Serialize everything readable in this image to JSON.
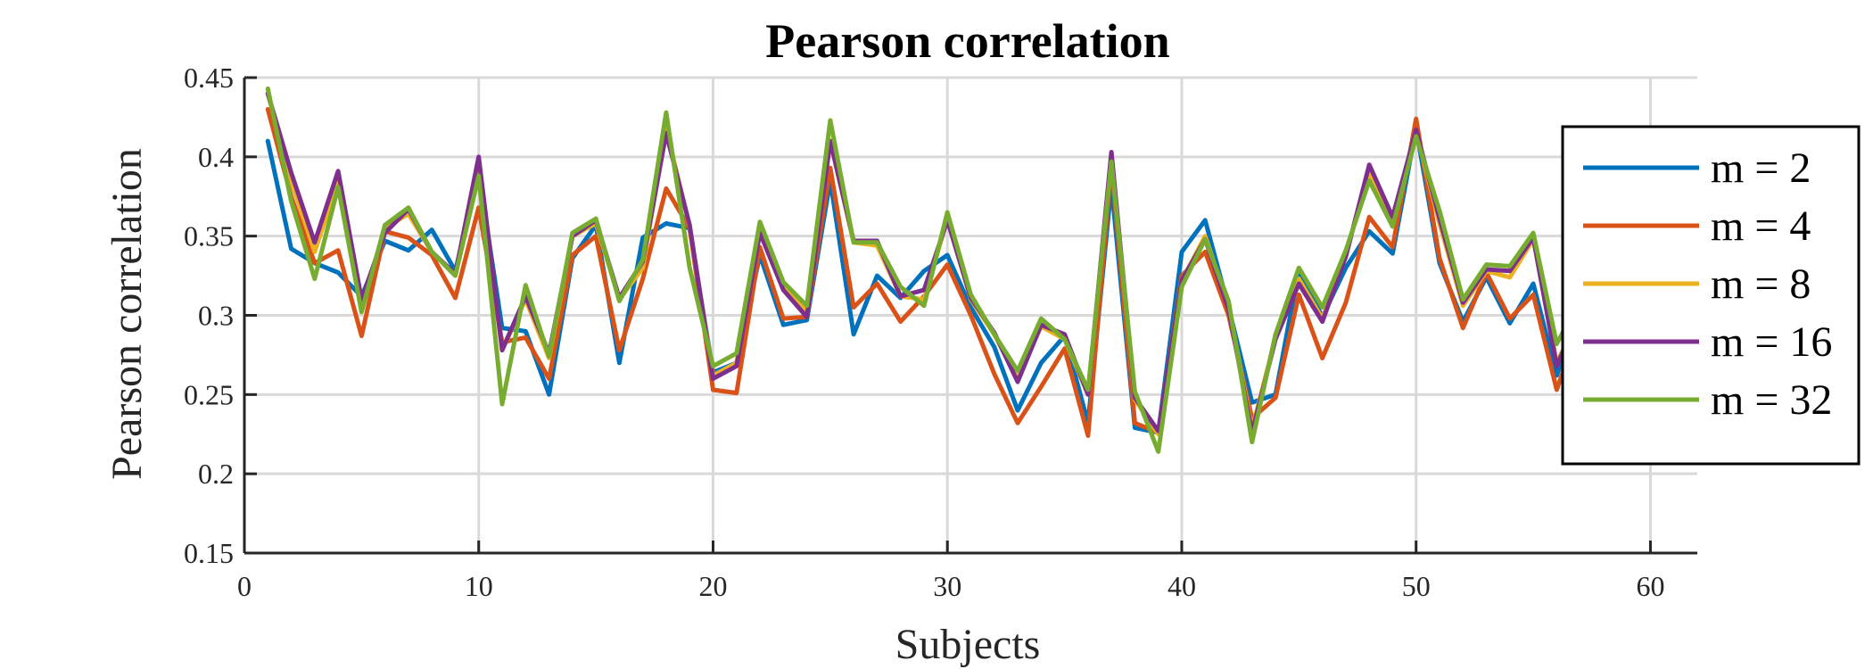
{
  "chart_data": {
    "type": "line",
    "title": "Pearson correlation",
    "xlabel": "Subjects",
    "ylabel": "Pearson correlation",
    "xlim": [
      0,
      62
    ],
    "ylim": [
      0.15,
      0.45
    ],
    "xticks": [
      0,
      10,
      20,
      30,
      40,
      50,
      60
    ],
    "yticks": [
      0.15,
      0.2,
      0.25,
      0.3,
      0.35,
      0.4,
      0.45
    ],
    "xtick_labels": [
      "0",
      "10",
      "20",
      "30",
      "40",
      "50",
      "60"
    ],
    "ytick_labels": [
      "0.15",
      "0.2",
      "0.25",
      "0.3",
      "0.35",
      "0.4",
      "0.45"
    ],
    "grid": true,
    "legend_position": "right",
    "x": [
      1,
      2,
      3,
      4,
      5,
      6,
      7,
      8,
      9,
      10,
      11,
      12,
      13,
      14,
      15,
      16,
      17,
      18,
      19,
      20,
      21,
      22,
      23,
      24,
      25,
      26,
      27,
      28,
      29,
      30,
      31,
      32,
      33,
      34,
      35,
      36,
      37,
      38,
      39,
      40,
      41,
      42,
      43,
      44,
      45,
      46,
      47,
      48,
      49,
      50,
      51,
      52,
      53,
      54,
      55,
      56,
      57
    ],
    "series": [
      {
        "name": "m = 2",
        "color": "#0072BD",
        "values": [
          0.41,
          0.342,
          0.333,
          0.327,
          0.312,
          0.347,
          0.341,
          0.354,
          0.328,
          0.39,
          0.292,
          0.29,
          0.25,
          0.336,
          0.357,
          0.27,
          0.349,
          0.358,
          0.355,
          0.264,
          0.27,
          0.338,
          0.294,
          0.297,
          0.385,
          0.288,
          0.325,
          0.311,
          0.328,
          0.338,
          0.305,
          0.28,
          0.24,
          0.27,
          0.287,
          0.232,
          0.382,
          0.229,
          0.226,
          0.34,
          0.36,
          0.305,
          0.245,
          0.25,
          0.329,
          0.299,
          0.33,
          0.353,
          0.339,
          0.418,
          0.333,
          0.296,
          0.324,
          0.295,
          0.32,
          0.262,
          0.305
        ]
      },
      {
        "name": "m = 4",
        "color": "#D95319",
        "values": [
          0.43,
          0.375,
          0.333,
          0.341,
          0.287,
          0.353,
          0.349,
          0.338,
          0.311,
          0.368,
          0.283,
          0.286,
          0.26,
          0.338,
          0.35,
          0.278,
          0.323,
          0.38,
          0.355,
          0.253,
          0.251,
          0.343,
          0.298,
          0.299,
          0.393,
          0.305,
          0.32,
          0.296,
          0.312,
          0.332,
          0.3,
          0.263,
          0.232,
          0.255,
          0.279,
          0.224,
          0.395,
          0.232,
          0.226,
          0.325,
          0.34,
          0.3,
          0.235,
          0.248,
          0.313,
          0.273,
          0.308,
          0.362,
          0.343,
          0.424,
          0.336,
          0.292,
          0.327,
          0.298,
          0.313,
          0.253,
          0.296
        ]
      },
      {
        "name": "m = 8",
        "color": "#EDB120",
        "values": [
          0.44,
          0.385,
          0.34,
          0.385,
          0.306,
          0.355,
          0.364,
          0.34,
          0.325,
          0.393,
          0.278,
          0.31,
          0.273,
          0.35,
          0.358,
          0.31,
          0.33,
          0.418,
          0.356,
          0.262,
          0.27,
          0.354,
          0.318,
          0.302,
          0.41,
          0.346,
          0.344,
          0.312,
          0.31,
          0.361,
          0.31,
          0.288,
          0.26,
          0.293,
          0.285,
          0.25,
          0.401,
          0.247,
          0.225,
          0.322,
          0.35,
          0.306,
          0.228,
          0.286,
          0.323,
          0.298,
          0.339,
          0.39,
          0.361,
          0.416,
          0.358,
          0.306,
          0.328,
          0.324,
          0.348,
          0.27,
          0.3
        ]
      },
      {
        "name": "m = 16",
        "color": "#7E2F8E",
        "values": [
          0.44,
          0.39,
          0.346,
          0.391,
          0.31,
          0.352,
          0.367,
          0.34,
          0.326,
          0.4,
          0.278,
          0.312,
          0.276,
          0.35,
          0.36,
          0.311,
          0.334,
          0.415,
          0.357,
          0.26,
          0.268,
          0.352,
          0.316,
          0.299,
          0.41,
          0.347,
          0.347,
          0.312,
          0.316,
          0.36,
          0.311,
          0.289,
          0.258,
          0.294,
          0.288,
          0.25,
          0.403,
          0.248,
          0.227,
          0.322,
          0.348,
          0.304,
          0.226,
          0.285,
          0.32,
          0.296,
          0.337,
          0.395,
          0.362,
          0.417,
          0.361,
          0.308,
          0.329,
          0.328,
          0.349,
          0.268,
          0.302
        ]
      },
      {
        "name": "m = 32",
        "color": "#77AC30",
        "values": [
          0.443,
          0.372,
          0.323,
          0.381,
          0.302,
          0.357,
          0.368,
          0.34,
          0.325,
          0.388,
          0.244,
          0.319,
          0.274,
          0.352,
          0.361,
          0.309,
          0.335,
          0.428,
          0.33,
          0.268,
          0.276,
          0.359,
          0.321,
          0.306,
          0.423,
          0.346,
          0.346,
          0.318,
          0.306,
          0.365,
          0.313,
          0.288,
          0.265,
          0.298,
          0.285,
          0.253,
          0.397,
          0.252,
          0.214,
          0.318,
          0.348,
          0.309,
          0.22,
          0.288,
          0.33,
          0.305,
          0.341,
          0.385,
          0.356,
          0.413,
          0.366,
          0.31,
          0.332,
          0.331,
          0.352,
          0.282,
          0.31
        ]
      }
    ]
  }
}
